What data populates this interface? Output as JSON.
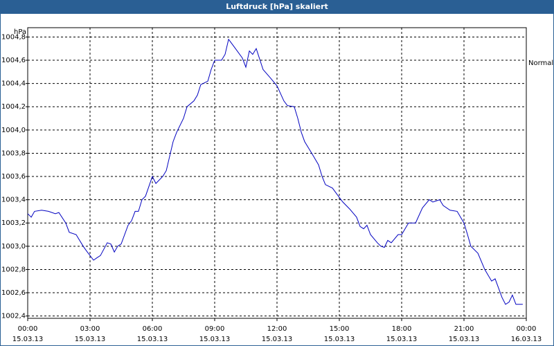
{
  "chart_data": {
    "type": "line",
    "title": "Luftdruck [hPa] skaliert",
    "y_label": "hPa",
    "grid": true,
    "xlim": [
      0,
      24
    ],
    "ylim": [
      1002.38,
      1004.88
    ],
    "xticks": [
      {
        "value": 0,
        "label": "00:00",
        "date": "15.03.13"
      },
      {
        "value": 3,
        "label": "03:00",
        "date": "15.03.13"
      },
      {
        "value": 6,
        "label": "06:00",
        "date": "15.03.13"
      },
      {
        "value": 9,
        "label": "09:00",
        "date": "15.03.13"
      },
      {
        "value": 12,
        "label": "12:00",
        "date": "15.03.13"
      },
      {
        "value": 15,
        "label": "15:00",
        "date": "15.03.13"
      },
      {
        "value": 18,
        "label": "18:00",
        "date": "15.03.13"
      },
      {
        "value": 21,
        "label": "21:00",
        "date": "15.03.13"
      },
      {
        "value": 24,
        "label": "00:00",
        "date": "16.03.13"
      }
    ],
    "yticks": [
      {
        "value": 1002.4,
        "label": "1002,4"
      },
      {
        "value": 1002.6,
        "label": "1002,6"
      },
      {
        "value": 1002.8,
        "label": "1002,8"
      },
      {
        "value": 1003.0,
        "label": "1003,0"
      },
      {
        "value": 1003.2,
        "label": "1003,2"
      },
      {
        "value": 1003.4,
        "label": "1003,4"
      },
      {
        "value": 1003.6,
        "label": "1003,6"
      },
      {
        "value": 1003.8,
        "label": "1003,8"
      },
      {
        "value": 1004.0,
        "label": "1004,0"
      },
      {
        "value": 1004.2,
        "label": "1004,2"
      },
      {
        "value": 1004.4,
        "label": "1004,4"
      },
      {
        "value": 1004.6,
        "label": "1004,6"
      },
      {
        "value": 1004.8,
        "label": "1004,8"
      }
    ],
    "x": [
      0,
      0.17,
      0.33,
      0.67,
      1.0,
      1.33,
      1.5,
      1.83,
      2.0,
      2.33,
      2.67,
      2.83,
      3.0,
      3.17,
      3.33,
      3.5,
      3.83,
      4.0,
      4.17,
      4.33,
      4.5,
      4.83,
      5.0,
      5.17,
      5.33,
      5.5,
      5.67,
      6.0,
      6.17,
      6.5,
      6.67,
      7.0,
      7.17,
      7.5,
      7.67,
      8.0,
      8.17,
      8.33,
      8.67,
      8.83,
      9.0,
      9.33,
      9.5,
      9.67,
      10.0,
      10.33,
      10.5,
      10.67,
      10.83,
      11.0,
      11.33,
      11.67,
      12.0,
      12.33,
      12.5,
      12.83,
      13.0,
      13.17,
      13.33,
      13.67,
      14.0,
      14.17,
      14.33,
      14.67,
      15.0,
      15.17,
      15.5,
      15.83,
      16.0,
      16.17,
      16.33,
      16.5,
      16.83,
      17.0,
      17.17,
      17.33,
      17.5,
      17.83,
      18.0,
      18.33,
      18.67,
      19.0,
      19.33,
      19.5,
      19.83,
      20.0,
      20.33,
      20.67,
      21.0,
      21.17,
      21.33,
      21.67,
      22.0,
      22.33,
      22.5,
      22.83,
      23.0,
      23.17,
      23.33,
      23.5,
      23.83
    ],
    "series": [
      {
        "name": "Normal",
        "color": "#0000c0",
        "values": [
          1003.28,
          1003.25,
          1003.3,
          1003.31,
          1003.3,
          1003.28,
          1003.29,
          1003.2,
          1003.12,
          1003.1,
          1003.0,
          1002.96,
          1002.92,
          1002.88,
          1002.9,
          1002.92,
          1003.03,
          1003.02,
          1002.95,
          1003.0,
          1003.02,
          1003.18,
          1003.22,
          1003.3,
          1003.3,
          1003.4,
          1003.43,
          1003.6,
          1003.54,
          1003.6,
          1003.65,
          1003.9,
          1003.98,
          1004.1,
          1004.2,
          1004.25,
          1004.3,
          1004.39,
          1004.42,
          1004.52,
          1004.6,
          1004.6,
          1004.65,
          1004.78,
          1004.7,
          1004.62,
          1004.54,
          1004.68,
          1004.65,
          1004.7,
          1004.52,
          1004.45,
          1004.38,
          1004.25,
          1004.21,
          1004.2,
          1004.1,
          1003.98,
          1003.9,
          1003.8,
          1003.7,
          1003.6,
          1003.53,
          1003.5,
          1003.42,
          1003.38,
          1003.32,
          1003.25,
          1003.17,
          1003.15,
          1003.18,
          1003.1,
          1003.03,
          1003.0,
          1002.99,
          1003.05,
          1003.03,
          1003.1,
          1003.1,
          1003.2,
          1003.2,
          1003.33,
          1003.4,
          1003.38,
          1003.4,
          1003.35,
          1003.31,
          1003.3,
          1003.2,
          1003.1,
          1003.0,
          1002.94,
          1002.8,
          1002.7,
          1002.72,
          1002.56,
          1002.5,
          1002.52,
          1002.58,
          1002.5,
          1002.5
        ]
      }
    ]
  }
}
